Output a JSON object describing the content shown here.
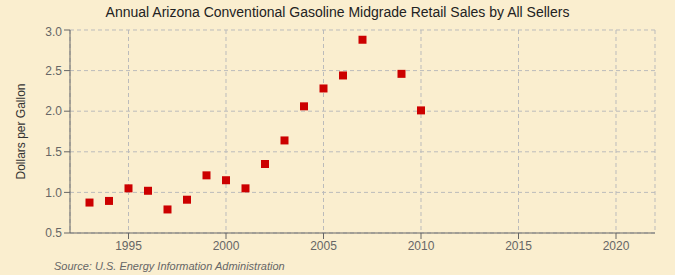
{
  "chart_data": {
    "type": "scatter",
    "title": "Annual Arizona Conventional Gasoline Midgrade Retail Sales by All Sellers",
    "y_label": "Dollars per Gallon",
    "annotations": [
      "Source: U.S. Energy Information Administration"
    ],
    "x": [
      1993,
      1994,
      1995,
      1996,
      1997,
      1998,
      1999,
      2000,
      2001,
      2002,
      2003,
      2004,
      2005,
      2006,
      2007,
      2009,
      2010
    ],
    "values": [
      0.875,
      0.895,
      1.05,
      1.02,
      0.79,
      0.91,
      1.21,
      1.15,
      1.05,
      1.35,
      1.64,
      2.06,
      2.28,
      2.44,
      2.88,
      2.46,
      2.01
    ],
    "xlim": [
      1992,
      2022
    ],
    "ylim": [
      0.5,
      3.0
    ],
    "xticks": [
      1995,
      2000,
      2005,
      2010,
      2015,
      2020
    ],
    "yticks": [
      0.5,
      {
        "value": 1,
        "label": "1.0"
      },
      1.5,
      {
        "value": 2,
        "label": "2.0"
      },
      2.5,
      {
        "value": 3,
        "label": "3.0"
      }
    ],
    "color": "#cc0000",
    "marker": "square",
    "grid": true
  }
}
